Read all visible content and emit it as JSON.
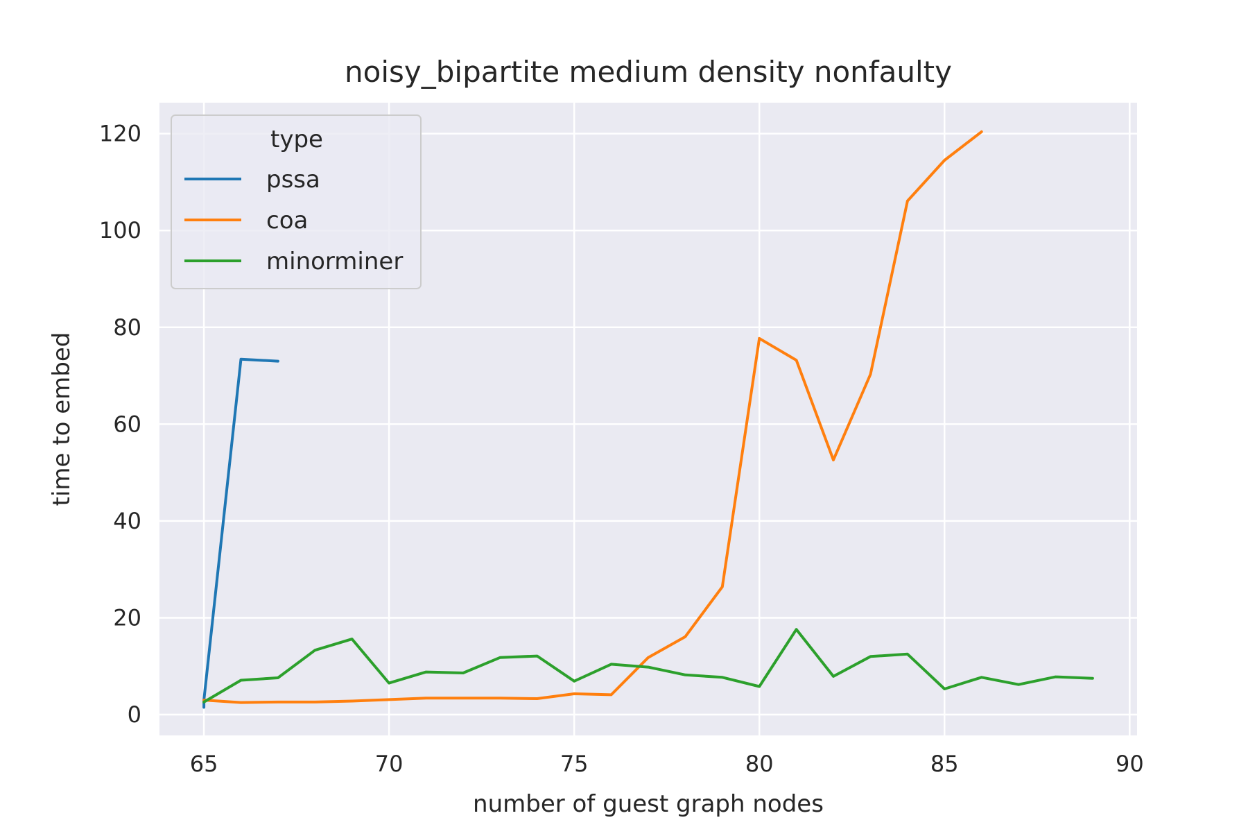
{
  "chart_data": {
    "type": "line",
    "title": "noisy_bipartite medium density nonfaulty",
    "xlabel": "number of guest graph nodes",
    "ylabel": "time to embed",
    "xlim": [
      63.8,
      90.2
    ],
    "ylim": [
      -4.3,
      126.4
    ],
    "xticks": [
      65,
      70,
      75,
      80,
      85,
      90
    ],
    "yticks": [
      0,
      20,
      40,
      60,
      80,
      100,
      120
    ],
    "grid": true,
    "legend": {
      "title": "type",
      "placement": "top-left"
    },
    "series": [
      {
        "name": "pssa",
        "color": "#1f77b4",
        "x": [
          65,
          65,
          66,
          67
        ],
        "y": [
          1.5,
          3.0,
          73.4,
          73.0
        ]
      },
      {
        "name": "coa",
        "color": "#ff7f0e",
        "x": [
          65,
          66,
          67,
          68,
          69,
          70,
          71,
          72,
          73,
          74,
          75,
          76,
          77,
          78,
          79,
          80,
          81,
          82,
          83,
          84,
          85,
          86
        ],
        "y": [
          3.0,
          2.5,
          2.6,
          2.6,
          2.8,
          3.1,
          3.4,
          3.4,
          3.4,
          3.3,
          4.3,
          4.1,
          11.8,
          16.1,
          26.4,
          77.7,
          73.2,
          52.6,
          70.3,
          106.1,
          114.5,
          120.4
        ]
      },
      {
        "name": "minorminer",
        "color": "#2ca02c",
        "x": [
          65,
          66,
          67,
          68,
          69,
          70,
          71,
          72,
          73,
          74,
          75,
          76,
          77,
          78,
          79,
          80,
          81,
          82,
          83,
          84,
          85,
          86,
          87,
          88,
          89
        ],
        "y": [
          2.6,
          7.1,
          7.6,
          13.3,
          15.6,
          6.5,
          8.8,
          8.6,
          11.8,
          12.1,
          6.9,
          10.4,
          9.8,
          8.2,
          7.7,
          5.8,
          17.6,
          7.9,
          12.0,
          12.5,
          5.3,
          7.7,
          6.2,
          7.8,
          7.5
        ]
      }
    ]
  }
}
